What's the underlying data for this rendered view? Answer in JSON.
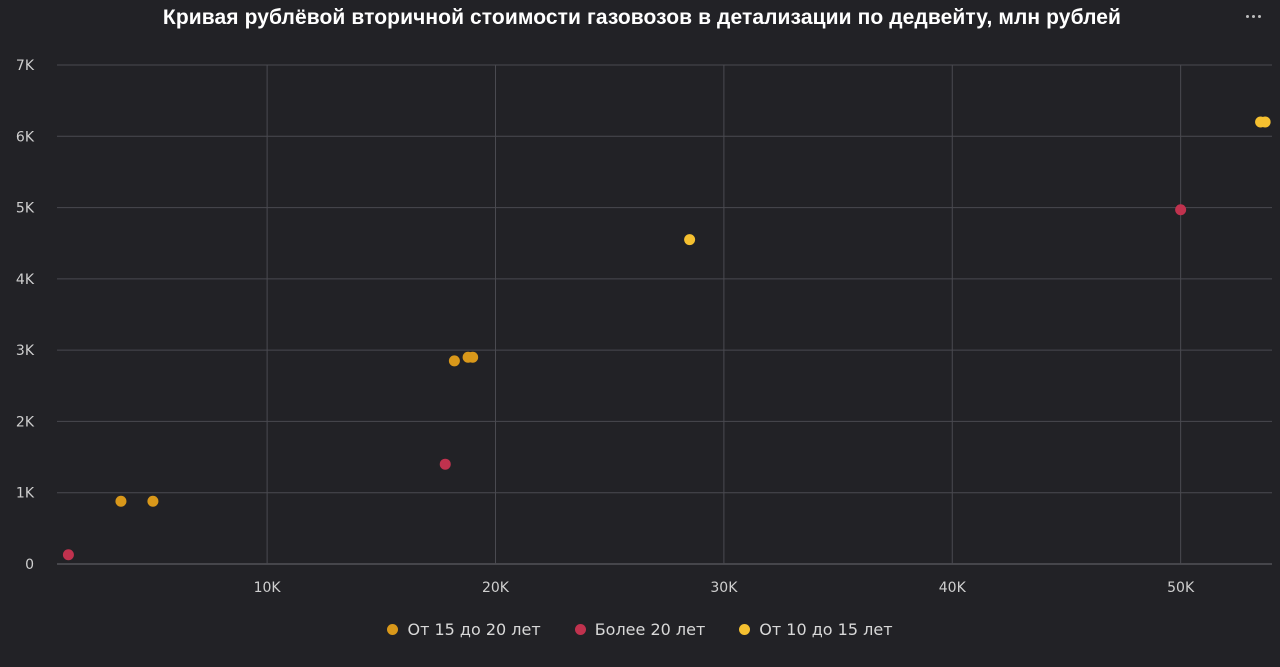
{
  "title": "Кривая рублёвой вторичной стоимости газовозов в детализации по дедвейту, млн рублей",
  "menu_icon": "more-horizontal-icon",
  "chart_data": {
    "type": "scatter",
    "title": "Кривая рублёвой вторичной стоимости газовозов в детализации по дедвейту, млн рублей",
    "xlabel": "",
    "ylabel": "",
    "xlim": [
      800,
      54000
    ],
    "ylim": [
      0,
      7000
    ],
    "x_ticks": [
      10000,
      20000,
      30000,
      40000,
      50000
    ],
    "x_tick_labels": [
      "10K",
      "20K",
      "30K",
      "40K",
      "50K"
    ],
    "y_ticks": [
      0,
      1000,
      2000,
      3000,
      4000,
      5000,
      6000,
      7000
    ],
    "y_tick_labels": [
      "0",
      "1K",
      "2K",
      "3K",
      "4K",
      "5K",
      "6K",
      "7K"
    ],
    "grid": true,
    "legend_position": "bottom-center",
    "series": [
      {
        "name": "От 15 до 20 лет",
        "color": "#d9981a",
        "points": [
          {
            "x": 3600,
            "y": 880
          },
          {
            "x": 5000,
            "y": 880
          },
          {
            "x": 18200,
            "y": 2850
          },
          {
            "x": 18800,
            "y": 2900
          },
          {
            "x": 19000,
            "y": 2900
          }
        ]
      },
      {
        "name": "Более 20 лет",
        "color": "#c0324e",
        "points": [
          {
            "x": 1300,
            "y": 130
          },
          {
            "x": 17800,
            "y": 1400
          },
          {
            "x": 50000,
            "y": 4970
          }
        ]
      },
      {
        "name": "От 10 до 15 лет",
        "color": "#f5c030",
        "points": [
          {
            "x": 28500,
            "y": 4550
          },
          {
            "x": 53500,
            "y": 6200
          },
          {
            "x": 53700,
            "y": 6200
          }
        ]
      }
    ]
  }
}
